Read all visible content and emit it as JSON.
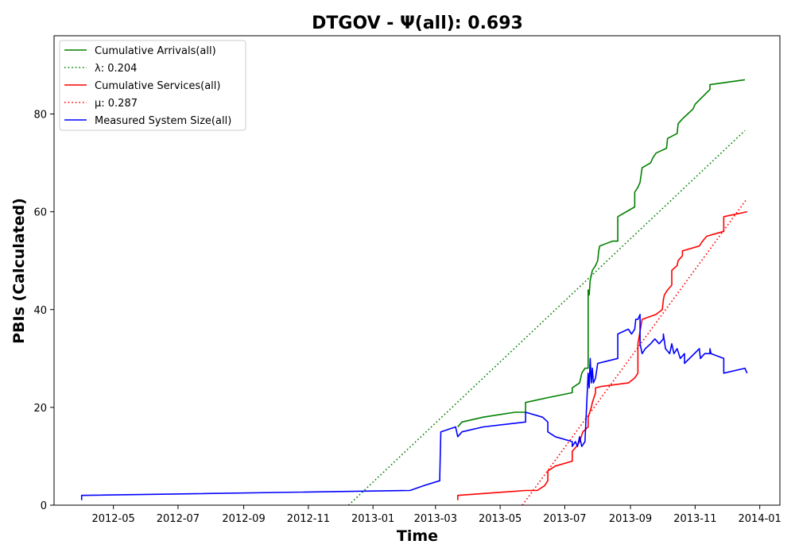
{
  "chart_data": {
    "type": "line",
    "title": "DTGOV -  Ψ(all): 0.693",
    "xlabel": "Time",
    "ylabel": "PBIs (Calculated)",
    "xlim": [
      "2012-03-06",
      "2014-01-20"
    ],
    "ylim": [
      0,
      96
    ],
    "x_ticks": [
      "2012-05",
      "2012-07",
      "2012-09",
      "2012-11",
      "2013-01",
      "2013-03",
      "2013-05",
      "2013-07",
      "2013-09",
      "2013-11",
      "2014-01"
    ],
    "y_ticks": [
      0,
      20,
      40,
      60,
      80
    ],
    "grid": false,
    "legend_position": "top-left",
    "series": [
      {
        "name": "Cumulative Arrivals(all)",
        "color": "#008000",
        "style": "solid",
        "points": [
          [
            "2013-03-22",
            16
          ],
          [
            "2013-03-26",
            17
          ],
          [
            "2013-04-15",
            18
          ],
          [
            "2013-05-15",
            19
          ],
          [
            "2013-05-25",
            19
          ],
          [
            "2013-05-25",
            21
          ],
          [
            "2013-06-15",
            22
          ],
          [
            "2013-07-08",
            23
          ],
          [
            "2013-07-08",
            24
          ],
          [
            "2013-07-15",
            25
          ],
          [
            "2013-07-17",
            27
          ],
          [
            "2013-07-20",
            28
          ],
          [
            "2013-07-23",
            28
          ],
          [
            "2013-07-23",
            44
          ],
          [
            "2013-07-24",
            43
          ],
          [
            "2013-07-25",
            46
          ],
          [
            "2013-07-27",
            48
          ],
          [
            "2013-07-30",
            49
          ],
          [
            "2013-08-01",
            50
          ],
          [
            "2013-08-02",
            52
          ],
          [
            "2013-08-03",
            53
          ],
          [
            "2013-08-15",
            54
          ],
          [
            "2013-08-20",
            54
          ],
          [
            "2013-08-20",
            59
          ],
          [
            "2013-09-05",
            61
          ],
          [
            "2013-09-05",
            64
          ],
          [
            "2013-09-08",
            65
          ],
          [
            "2013-09-10",
            66
          ],
          [
            "2013-09-12",
            69
          ],
          [
            "2013-09-20",
            70
          ],
          [
            "2013-09-22",
            71
          ],
          [
            "2013-09-25",
            72
          ],
          [
            "2013-09-30",
            72.5
          ],
          [
            "2013-10-05",
            73
          ],
          [
            "2013-10-06",
            75
          ],
          [
            "2013-10-15",
            76
          ],
          [
            "2013-10-16",
            78
          ],
          [
            "2013-10-20",
            79
          ],
          [
            "2013-10-25",
            80
          ],
          [
            "2013-10-30",
            81
          ],
          [
            "2013-11-01",
            82
          ],
          [
            "2013-11-15",
            85
          ],
          [
            "2013-11-15",
            86
          ],
          [
            "2013-12-18",
            87
          ]
        ]
      },
      {
        "name": "λ: 0.204",
        "color": "#008000",
        "style": "dotted",
        "points": [
          [
            "2012-12-09",
            0
          ],
          [
            "2013-12-18",
            76.6
          ]
        ]
      },
      {
        "name": "Cumulative Services(all)",
        "color": "#ff0000",
        "style": "solid",
        "points": [
          [
            "2013-03-22",
            1
          ],
          [
            "2013-03-22",
            2
          ],
          [
            "2013-05-25",
            3
          ],
          [
            "2013-06-05",
            3
          ],
          [
            "2013-06-12",
            4
          ],
          [
            "2013-06-15",
            5
          ],
          [
            "2013-06-15",
            7
          ],
          [
            "2013-06-22",
            8
          ],
          [
            "2013-07-08",
            9
          ],
          [
            "2013-07-08",
            11
          ],
          [
            "2013-07-12",
            12
          ],
          [
            "2013-07-15",
            13
          ],
          [
            "2013-07-18",
            15
          ],
          [
            "2013-07-23",
            16
          ],
          [
            "2013-07-23",
            18
          ],
          [
            "2013-07-26",
            20
          ],
          [
            "2013-07-27",
            21
          ],
          [
            "2013-07-30",
            23
          ],
          [
            "2013-07-30",
            24
          ],
          [
            "2013-08-05",
            24.3
          ],
          [
            "2013-08-30",
            25
          ],
          [
            "2013-09-05",
            26
          ],
          [
            "2013-09-08",
            27
          ],
          [
            "2013-09-08",
            33
          ],
          [
            "2013-09-12",
            38
          ],
          [
            "2013-09-25",
            39
          ],
          [
            "2013-10-01",
            40
          ],
          [
            "2013-10-02",
            42
          ],
          [
            "2013-10-03",
            43
          ],
          [
            "2013-10-06",
            44
          ],
          [
            "2013-10-10",
            45
          ],
          [
            "2013-10-10",
            48
          ],
          [
            "2013-10-15",
            49
          ],
          [
            "2013-10-16",
            50
          ],
          [
            "2013-10-20",
            51
          ],
          [
            "2013-10-20",
            52
          ],
          [
            "2013-11-05",
            53
          ],
          [
            "2013-11-08",
            54
          ],
          [
            "2013-11-12",
            55
          ],
          [
            "2013-11-20",
            55.5
          ],
          [
            "2013-11-28",
            56
          ],
          [
            "2013-11-28",
            59
          ],
          [
            "2013-12-20",
            60
          ]
        ]
      },
      {
        "name": "μ: 0.287",
        "color": "#ff0000",
        "style": "dotted",
        "points": [
          [
            "2013-05-22",
            0
          ],
          [
            "2013-12-20",
            62.7
          ]
        ]
      },
      {
        "name": "Measured System Size(all)",
        "color": "#0000ff",
        "style": "solid",
        "points": [
          [
            "2012-04-01",
            1
          ],
          [
            "2012-04-01",
            2
          ],
          [
            "2013-02-05",
            3
          ],
          [
            "2013-02-18",
            4
          ],
          [
            "2013-03-05",
            5
          ],
          [
            "2013-03-05",
            6
          ],
          [
            "2013-03-06",
            15
          ],
          [
            "2013-03-20",
            16
          ],
          [
            "2013-03-22",
            14
          ],
          [
            "2013-03-26",
            15
          ],
          [
            "2013-04-15",
            16
          ],
          [
            "2013-05-25",
            17
          ],
          [
            "2013-05-25",
            19
          ],
          [
            "2013-06-10",
            18
          ],
          [
            "2013-06-15",
            17
          ],
          [
            "2013-06-15",
            15
          ],
          [
            "2013-06-22",
            14
          ],
          [
            "2013-07-08",
            13
          ],
          [
            "2013-07-08",
            12
          ],
          [
            "2013-07-11",
            13
          ],
          [
            "2013-07-13",
            12
          ],
          [
            "2013-07-15",
            14
          ],
          [
            "2013-07-17",
            12
          ],
          [
            "2013-07-20",
            13
          ],
          [
            "2013-07-23",
            27
          ],
          [
            "2013-07-24",
            24
          ],
          [
            "2013-07-25",
            30
          ],
          [
            "2013-07-26",
            25
          ],
          [
            "2013-07-27",
            28
          ],
          [
            "2013-07-28",
            25
          ],
          [
            "2013-07-30",
            26
          ],
          [
            "2013-08-01",
            29
          ],
          [
            "2013-08-20",
            30
          ],
          [
            "2013-08-20",
            35
          ],
          [
            "2013-08-30",
            36
          ],
          [
            "2013-09-02",
            35
          ],
          [
            "2013-09-05",
            36
          ],
          [
            "2013-09-06",
            38
          ],
          [
            "2013-09-08",
            38
          ],
          [
            "2013-09-10",
            39
          ],
          [
            "2013-09-10",
            33
          ],
          [
            "2013-09-12",
            31
          ],
          [
            "2013-09-15",
            32
          ],
          [
            "2013-09-20",
            33
          ],
          [
            "2013-09-24",
            34
          ],
          [
            "2013-09-28",
            33
          ],
          [
            "2013-10-02",
            34
          ],
          [
            "2013-10-02",
            35
          ],
          [
            "2013-10-04",
            32
          ],
          [
            "2013-10-08",
            31
          ],
          [
            "2013-10-10",
            33
          ],
          [
            "2013-10-12",
            31
          ],
          [
            "2013-10-15",
            32
          ],
          [
            "2013-10-18",
            30
          ],
          [
            "2013-10-22",
            31
          ],
          [
            "2013-10-22",
            29
          ],
          [
            "2013-11-05",
            32
          ],
          [
            "2013-11-06",
            30
          ],
          [
            "2013-11-10",
            31
          ],
          [
            "2013-11-15",
            31
          ],
          [
            "2013-11-15",
            32
          ],
          [
            "2013-11-16",
            31
          ],
          [
            "2013-11-28",
            30
          ],
          [
            "2013-11-28",
            27
          ],
          [
            "2013-12-18",
            28
          ],
          [
            "2013-12-20",
            27
          ]
        ]
      }
    ]
  }
}
